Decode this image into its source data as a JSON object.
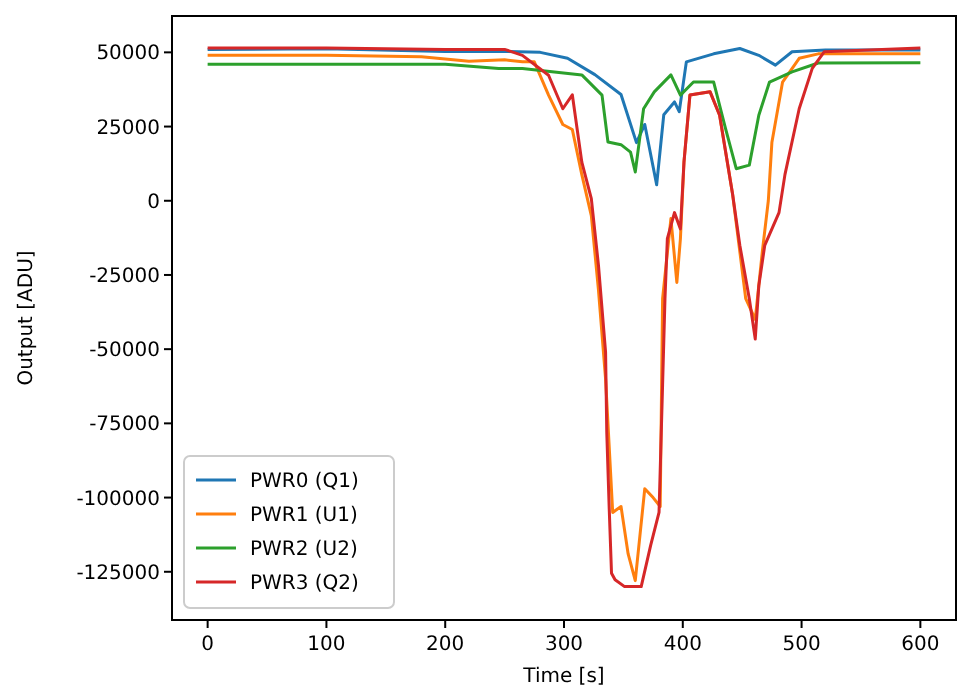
{
  "chart_data": {
    "type": "line",
    "xlabel": "Time [s]",
    "ylabel": "Output [ADU]",
    "xlim": [
      -30,
      630
    ],
    "ylim": [
      -141250,
      62250
    ],
    "xticks": [
      0,
      100,
      200,
      300,
      400,
      500,
      600
    ],
    "yticks": [
      -125000,
      -100000,
      -75000,
      -50000,
      -25000,
      0,
      25000,
      50000
    ],
    "legend": "bottom left",
    "grid": false,
    "line_style": "solid",
    "marker": "none",
    "series": [
      {
        "name": "PWR0 (Q1)",
        "color": "#1f77b4",
        "x": [
          0,
          100,
          200,
          250,
          280,
          303,
          326,
          348,
          361,
          368,
          378,
          384,
          393,
          397,
          403,
          426,
          448,
          464,
          478,
          492,
          520,
          600
        ],
        "values": [
          51000,
          51200,
          50300,
          50300,
          50000,
          48000,
          42500,
          35800,
          19600,
          25700,
          5400,
          29000,
          33300,
          30000,
          46800,
          49500,
          51300,
          49000,
          45700,
          50200,
          50800,
          50800
        ]
      },
      {
        "name": "PWR1 (U1)",
        "color": "#ff7f0e",
        "x": [
          0,
          100,
          180,
          220,
          250,
          265,
          275,
          287,
          299,
          307,
          315,
          323,
          329,
          335,
          341,
          348,
          354,
          360,
          368,
          375,
          381,
          383,
          390,
          395,
          398,
          401,
          406,
          423,
          431,
          442,
          453,
          461,
          467,
          472,
          475,
          484,
          498,
          514,
          600
        ],
        "values": [
          49000,
          49000,
          48500,
          47000,
          47500,
          46800,
          46800,
          35600,
          25700,
          24000,
          8800,
          -5000,
          -30000,
          -60000,
          -105000,
          -103000,
          -119000,
          -128000,
          -97000,
          -100000,
          -103000,
          -33000,
          -6000,
          -27500,
          -12800,
          13000,
          35600,
          36700,
          28800,
          2000,
          -33000,
          -40000,
          -17000,
          0,
          19600,
          40000,
          48000,
          49500,
          49500
        ]
      },
      {
        "name": "PWR2 (U2)",
        "color": "#2ca02c",
        "x": [
          0,
          100,
          200,
          245,
          265,
          315,
          332,
          337,
          348,
          356,
          360,
          367,
          376,
          390,
          398,
          409,
          426,
          436,
          445,
          456,
          464,
          473,
          492,
          514,
          600
        ],
        "values": [
          46000,
          46000,
          46000,
          44600,
          44600,
          42400,
          35600,
          19800,
          18900,
          16400,
          9700,
          31000,
          36700,
          42400,
          35600,
          40000,
          40000,
          24300,
          10800,
          12000,
          28800,
          40000,
          43400,
          46400,
          46500
        ]
      },
      {
        "name": "PWR3 (Q2)",
        "color": "#d62728",
        "x": [
          0,
          100,
          200,
          250,
          265,
          287,
          299,
          307,
          315,
          323,
          329,
          335,
          336,
          338,
          340,
          343,
          351,
          365,
          373,
          380,
          383,
          385,
          387,
          393,
          398,
          401,
          406,
          423,
          431,
          442,
          448,
          456,
          461,
          464,
          469,
          481,
          486,
          498,
          509,
          519,
          600
        ],
        "values": [
          51500,
          51500,
          51000,
          51000,
          49000,
          42300,
          31000,
          35700,
          13000,
          700,
          -21700,
          -51000,
          -78000,
          -103000,
          -125500,
          -127700,
          -130000,
          -130000,
          -116000,
          -105000,
          -62000,
          -33000,
          -12800,
          -4000,
          -9500,
          13000,
          35600,
          36700,
          28800,
          2000,
          -15000,
          -33000,
          -46600,
          -28600,
          -15000,
          -4000,
          8800,
          31000,
          44600,
          50200,
          51500
        ]
      }
    ]
  }
}
